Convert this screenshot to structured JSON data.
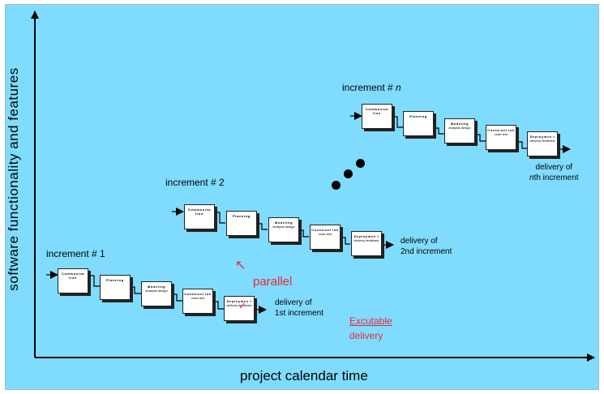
{
  "axes": {
    "y_label": "software functionality and features",
    "x_label": "project calendar time"
  },
  "activities": [
    {
      "lines": [
        "Communica tion",
        ""
      ]
    },
    {
      "lines": [
        "Planning",
        ""
      ]
    },
    {
      "lines": [
        "Modeling",
        "analysis design"
      ]
    },
    {
      "lines": [
        "Construct ion",
        "code test"
      ]
    },
    {
      "lines": [
        "Deploymen t",
        "delivery feedback"
      ]
    }
  ],
  "increments": [
    {
      "title": "increment # 1",
      "delivery": [
        "delivery of",
        "1st increment"
      ]
    },
    {
      "title": "increment # 2",
      "delivery": [
        "delivery of",
        "2nd increment"
      ]
    },
    {
      "title_prefix": "increment #",
      "title_var": "n",
      "delivery_l1": "delivery of",
      "delivery_var": "n",
      "delivery_rest": "th increment"
    }
  ],
  "annotations": {
    "parallel": "parallel",
    "arrow": "↖",
    "excutable_l1": "Excutable",
    "excutable_l2": "delivery"
  },
  "colors": {
    "background": "#80dcff",
    "annotation": "#e8283a"
  }
}
